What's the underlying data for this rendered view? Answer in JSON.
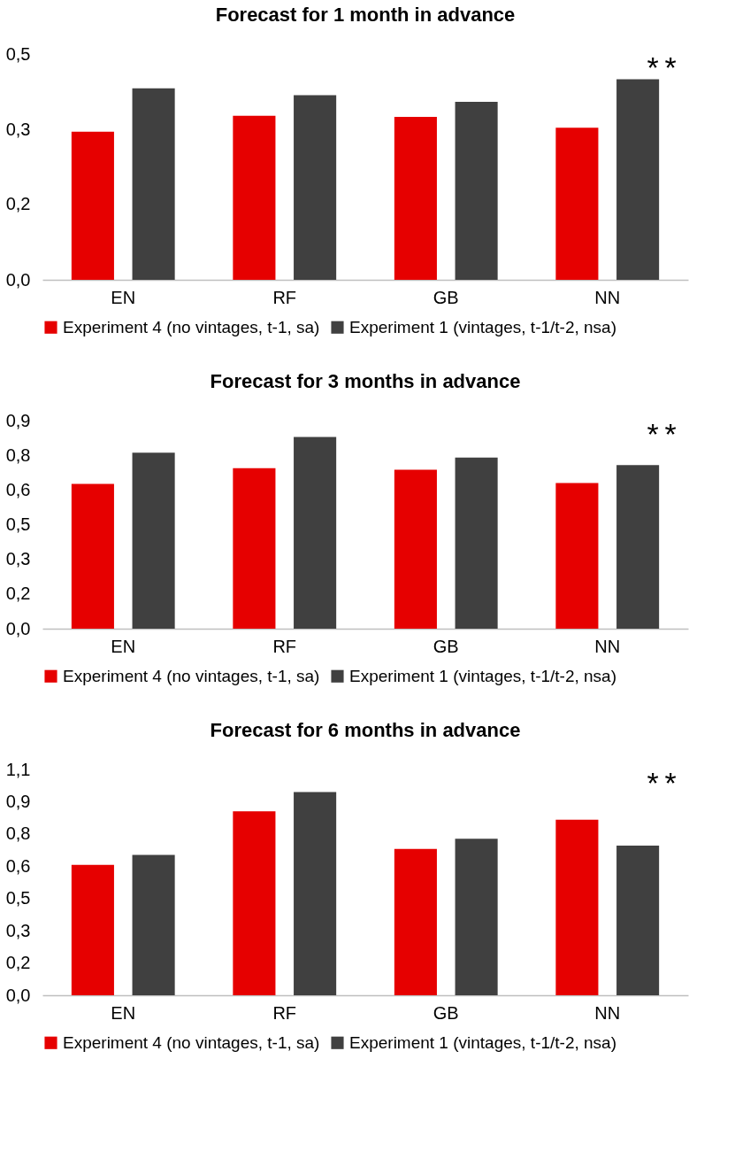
{
  "chart_data": [
    {
      "type": "bar",
      "title": "Forecast for 1 month in advance",
      "categories": [
        "EN",
        "RF",
        "GB",
        "NN"
      ],
      "series": [
        {
          "name": "Experiment 4 (no vintages, t-1, sa)",
          "color": "#e60000",
          "values": [
            0.328,
            0.363,
            0.361,
            0.337
          ]
        },
        {
          "name": "Experiment 1 (vintages, t-1/t-2, nsa)",
          "color": "#404040",
          "values": [
            0.424,
            0.409,
            0.394,
            0.444
          ]
        }
      ],
      "ylim": [
        0,
        0.5
      ],
      "yticks": [
        {
          "value": 0,
          "label": "0,0"
        },
        {
          "value": 0.1667,
          "label": "0,2"
        },
        {
          "value": 0.3333,
          "label": "0,3"
        },
        {
          "value": 0.5,
          "label": "0,5"
        }
      ],
      "annotations": [
        "*",
        "*"
      ],
      "grid": false,
      "legend": "bottom"
    },
    {
      "type": "bar",
      "title": "Forecast for 3 months in advance",
      "categories": [
        "EN",
        "RF",
        "GB",
        "NN"
      ],
      "series": [
        {
          "name": "Experiment 4 (no vintages, t-1, sa)",
          "color": "#e60000",
          "values": [
            0.626,
            0.694,
            0.687,
            0.63
          ]
        },
        {
          "name": "Experiment 1 (vintages, t-1/t-2, nsa)",
          "color": "#404040",
          "values": [
            0.761,
            0.829,
            0.74,
            0.708
          ]
        }
      ],
      "ylim": [
        0,
        0.9
      ],
      "yticks": [
        {
          "value": 0,
          "label": "0,0"
        },
        {
          "value": 0.15,
          "label": "0,2"
        },
        {
          "value": 0.3,
          "label": "0,3"
        },
        {
          "value": 0.45,
          "label": "0,5"
        },
        {
          "value": 0.6,
          "label": "0,6"
        },
        {
          "value": 0.75,
          "label": "0,8"
        },
        {
          "value": 0.9,
          "label": "0,9"
        }
      ],
      "annotations": [
        "*",
        "*"
      ],
      "grid": false,
      "legend": "bottom"
    },
    {
      "type": "bar",
      "title": "Forecast for 6 months in advance",
      "categories": [
        "EN",
        "RF",
        "GB",
        "NN"
      ],
      "series": [
        {
          "name": "Experiment 4 (no vintages, t-1, sa)",
          "color": "#e60000",
          "values": [
            0.635,
            0.896,
            0.713,
            0.855
          ]
        },
        {
          "name": "Experiment 1 (vintages, t-1/t-2, nsa)",
          "color": "#404040",
          "values": [
            0.684,
            0.99,
            0.762,
            0.729
          ]
        }
      ],
      "ylim": [
        0,
        1.1
      ],
      "yticks": [
        {
          "value": 0,
          "label": "0,0"
        },
        {
          "value": 0.1571,
          "label": "0,2"
        },
        {
          "value": 0.3143,
          "label": "0,3"
        },
        {
          "value": 0.4714,
          "label": "0,5"
        },
        {
          "value": 0.6286,
          "label": "0,6"
        },
        {
          "value": 0.7857,
          "label": "0,8"
        },
        {
          "value": 0.9429,
          "label": "0,9"
        },
        {
          "value": 1.1,
          "label": "1,1"
        }
      ],
      "annotations": [
        "*",
        "*"
      ],
      "grid": false,
      "legend": "bottom"
    }
  ]
}
